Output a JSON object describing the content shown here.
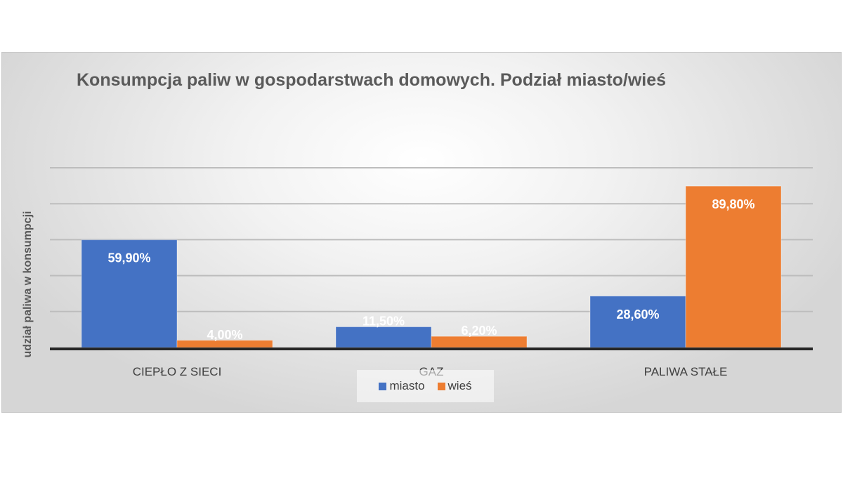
{
  "chart_data": {
    "type": "bar",
    "title": "Konsumpcja paliw w gospodarstwach domowych. Podział miasto/wieś",
    "ylabel": "udział paliwa w konsumpcji",
    "xlabel": "",
    "categories": [
      "CIEPŁO Z SIECI",
      "GAZ",
      "PALIWA STAŁE"
    ],
    "series": [
      {
        "name": "miasto",
        "color": "#4472c4",
        "values": [
          59.9,
          11.5,
          28.6
        ],
        "labels": [
          "59,90%",
          "11,50%",
          "28,60%"
        ]
      },
      {
        "name": "wieś",
        "color": "#ed7d31",
        "values": [
          4.0,
          6.2,
          89.8
        ],
        "labels": [
          "4,00%",
          "6,20%",
          "89,80%"
        ]
      }
    ],
    "ylim": [
      0,
      100
    ],
    "grid": true,
    "legend_position": "bottom"
  }
}
